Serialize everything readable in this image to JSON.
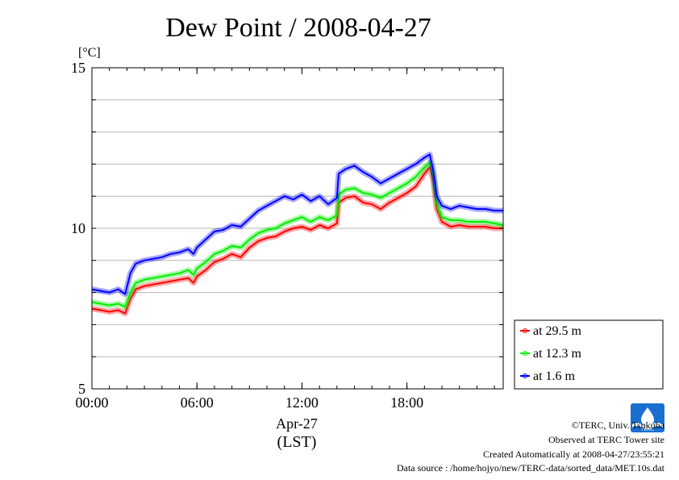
{
  "chart_data": {
    "type": "line",
    "title": "Dew Point / 2008-04-27",
    "ylabel": "[°C]",
    "xlabel_date": "Apr-27",
    "xlabel_tz": "(LST)",
    "x_unit": "hour",
    "xlim": [
      0,
      23.5
    ],
    "ylim": [
      5,
      15
    ],
    "x_ticks": [
      {
        "value": 0,
        "label": "00:00"
      },
      {
        "value": 6,
        "label": "06:00"
      },
      {
        "value": 12,
        "label": "12:00"
      },
      {
        "value": 18,
        "label": "18:00"
      }
    ],
    "y_ticks": [
      {
        "value": 5,
        "label": "5"
      },
      {
        "value": 10,
        "label": "10"
      },
      {
        "value": 15,
        "label": "15"
      }
    ],
    "grid": true,
    "legend_position": "right",
    "x": [
      0,
      0.5,
      1,
      1.5,
      1.9,
      2.2,
      2.5,
      3,
      3.5,
      4,
      4.5,
      5,
      5.5,
      5.8,
      6,
      6.5,
      7,
      7.5,
      8,
      8.5,
      9,
      9.5,
      10,
      10.5,
      11,
      11.5,
      12,
      12.5,
      13,
      13.5,
      14,
      14.1,
      14.5,
      15,
      15.5,
      16,
      16.5,
      17,
      17.5,
      18,
      18.5,
      19,
      19.3,
      19.5,
      19.7,
      20,
      20.5,
      21,
      21.5,
      22,
      22.5,
      23,
      23.5
    ],
    "series": [
      {
        "name": "at 29.5 m",
        "color": "#ff0000",
        "values": [
          7.5,
          7.45,
          7.4,
          7.45,
          7.35,
          7.8,
          8.1,
          8.2,
          8.25,
          8.3,
          8.35,
          8.4,
          8.45,
          8.3,
          8.5,
          8.7,
          8.95,
          9.05,
          9.2,
          9.1,
          9.4,
          9.6,
          9.7,
          9.75,
          9.9,
          10.0,
          10.05,
          9.95,
          10.1,
          10.0,
          10.15,
          10.8,
          10.95,
          11.0,
          10.8,
          10.75,
          10.6,
          10.8,
          10.95,
          11.1,
          11.3,
          11.7,
          11.9,
          11.5,
          10.6,
          10.2,
          10.05,
          10.1,
          10.05,
          10.05,
          10.05,
          10.0,
          10.0
        ]
      },
      {
        "name": "at 12.3 m",
        "color": "#00ee00",
        "values": [
          7.7,
          7.65,
          7.6,
          7.65,
          7.55,
          8.0,
          8.3,
          8.4,
          8.45,
          8.5,
          8.55,
          8.6,
          8.7,
          8.55,
          8.75,
          8.95,
          9.2,
          9.3,
          9.45,
          9.4,
          9.65,
          9.85,
          9.95,
          10.0,
          10.15,
          10.25,
          10.35,
          10.2,
          10.35,
          10.25,
          10.4,
          11.05,
          11.2,
          11.25,
          11.1,
          11.05,
          10.95,
          11.1,
          11.25,
          11.4,
          11.6,
          11.9,
          12.05,
          11.7,
          10.8,
          10.35,
          10.25,
          10.25,
          10.2,
          10.2,
          10.2,
          10.15,
          10.1
        ]
      },
      {
        "name": "at 1.6 m",
        "color": "#0000ff",
        "values": [
          8.1,
          8.05,
          8.0,
          8.1,
          7.95,
          8.6,
          8.9,
          9.0,
          9.05,
          9.1,
          9.2,
          9.25,
          9.35,
          9.2,
          9.4,
          9.65,
          9.9,
          9.95,
          10.1,
          10.05,
          10.3,
          10.55,
          10.7,
          10.85,
          11.0,
          10.9,
          11.05,
          10.85,
          11.0,
          10.75,
          10.95,
          11.7,
          11.85,
          11.95,
          11.75,
          11.6,
          11.4,
          11.55,
          11.7,
          11.85,
          12.0,
          12.2,
          12.3,
          11.8,
          11.0,
          10.7,
          10.6,
          10.7,
          10.65,
          10.6,
          10.6,
          10.55,
          10.55
        ]
      }
    ]
  },
  "footer": {
    "copyright": "©TERC, Univ. Tsukuba",
    "site": "Observed at TERC Tower site",
    "created": "Created Automatically at 2008-04-27/23:55:21",
    "source": "Data source : /home/hojyo/new/TERC-data/sorted_data/MET.10s.dat"
  },
  "logo": {
    "icon": "terc-logo-icon",
    "text": "TERC",
    "color": "#1a6fd0"
  }
}
